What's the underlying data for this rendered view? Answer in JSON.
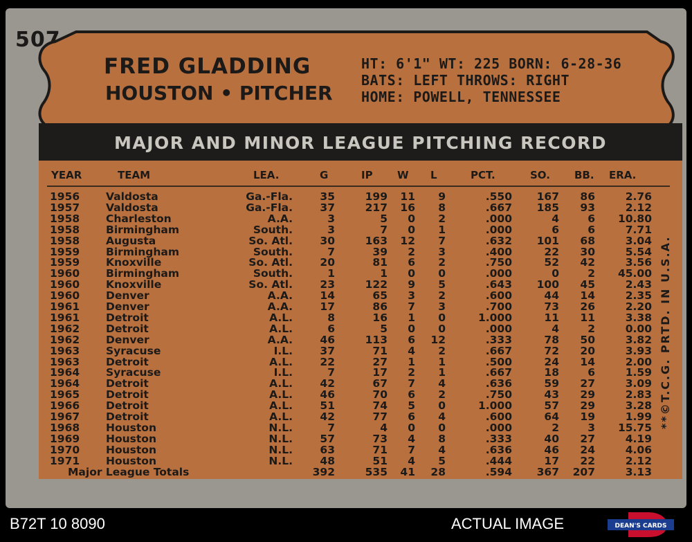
{
  "card_number": "507",
  "player": {
    "name": "FRED GLADDING",
    "team_position": "HOUSTON • PITCHER",
    "bio_line1": "HT: 6'1\"  WT: 225   BORN: 6-28-36",
    "bio_line2": "BATS: LEFT       THROWS: RIGHT",
    "bio_line3": "HOME: POWELL, TENNESSEE"
  },
  "banner_title": "MAJOR AND MINOR LEAGUE PITCHING RECORD",
  "columns": [
    "YEAR",
    "TEAM",
    "LEA.",
    "G",
    "IP",
    "W",
    "L",
    "PCT.",
    "SO.",
    "BB.",
    "ERA."
  ],
  "rows": [
    [
      "1956",
      "Valdosta",
      "Ga.-Fla.",
      "35",
      "199",
      "11",
      "9",
      ".550",
      "167",
      "86",
      "2.76"
    ],
    [
      "1957",
      "Valdosta",
      "Ga.-Fla.",
      "37",
      "217",
      "16",
      "8",
      ".667",
      "185",
      "93",
      "2.12"
    ],
    [
      "1958",
      "Charleston",
      "A.A.",
      "3",
      "5",
      "0",
      "2",
      ".000",
      "4",
      "6",
      "10.80"
    ],
    [
      "1958",
      "Birmingham",
      "South.",
      "3",
      "7",
      "0",
      "1",
      ".000",
      "6",
      "6",
      "7.71"
    ],
    [
      "1958",
      "Augusta",
      "So. Atl.",
      "30",
      "163",
      "12",
      "7",
      ".632",
      "101",
      "68",
      "3.04"
    ],
    [
      "1959",
      "Birmingham",
      "South.",
      "7",
      "39",
      "2",
      "3",
      ".400",
      "22",
      "30",
      "5.54"
    ],
    [
      "1959",
      "Knoxville",
      "So. Atl.",
      "20",
      "81",
      "6",
      "2",
      ".750",
      "52",
      "42",
      "3.56"
    ],
    [
      "1960",
      "Birmingham",
      "South.",
      "1",
      "1",
      "0",
      "0",
      ".000",
      "0",
      "2",
      "45.00"
    ],
    [
      "1960",
      "Knoxville",
      "So. Atl.",
      "23",
      "122",
      "9",
      "5",
      ".643",
      "100",
      "45",
      "2.43"
    ],
    [
      "1960",
      "Denver",
      "A.A.",
      "14",
      "65",
      "3",
      "2",
      ".600",
      "44",
      "14",
      "2.35"
    ],
    [
      "1961",
      "Denver",
      "A.A.",
      "17",
      "86",
      "7",
      "3",
      ".700",
      "73",
      "26",
      "2.20"
    ],
    [
      "1961",
      "Detroit",
      "A.L.",
      "8",
      "16",
      "1",
      "0",
      "1.000",
      "11",
      "11",
      "3.38"
    ],
    [
      "1962",
      "Detroit",
      "A.L.",
      "6",
      "5",
      "0",
      "0",
      ".000",
      "4",
      "2",
      "0.00"
    ],
    [
      "1962",
      "Denver",
      "A.A.",
      "46",
      "113",
      "6",
      "12",
      ".333",
      "78",
      "50",
      "3.82"
    ],
    [
      "1963",
      "Syracuse",
      "I.L.",
      "37",
      "71",
      "4",
      "2",
      ".667",
      "72",
      "20",
      "3.93"
    ],
    [
      "1963",
      "Detroit",
      "A.L.",
      "22",
      "27",
      "1",
      "1",
      ".500",
      "24",
      "14",
      "2.00"
    ],
    [
      "1964",
      "Syracuse",
      "I.L.",
      "7",
      "17",
      "2",
      "1",
      ".667",
      "18",
      "6",
      "1.59"
    ],
    [
      "1964",
      "Detroit",
      "A.L.",
      "42",
      "67",
      "7",
      "4",
      ".636",
      "59",
      "27",
      "3.09"
    ],
    [
      "1965",
      "Detroit",
      "A.L.",
      "46",
      "70",
      "6",
      "2",
      ".750",
      "43",
      "29",
      "2.83"
    ],
    [
      "1966",
      "Detroit",
      "A.L.",
      "51",
      "74",
      "5",
      "0",
      "1.000",
      "57",
      "29",
      "3.28"
    ],
    [
      "1967",
      "Detroit",
      "A.L.",
      "42",
      "77",
      "6",
      "4",
      ".600",
      "64",
      "19",
      "1.99"
    ],
    [
      "1968",
      "Houston",
      "N.L.",
      "7",
      "4",
      "0",
      "0",
      ".000",
      "2",
      "3",
      "15.75"
    ],
    [
      "1969",
      "Houston",
      "N.L.",
      "57",
      "73",
      "4",
      "8",
      ".333",
      "40",
      "27",
      "4.19"
    ],
    [
      "1970",
      "Houston",
      "N.L.",
      "63",
      "71",
      "7",
      "4",
      ".636",
      "46",
      "24",
      "4.06"
    ],
    [
      "1971",
      "Houston",
      "N.L.",
      "48",
      "51",
      "4",
      "5",
      ".444",
      "17",
      "22",
      "2.12"
    ]
  ],
  "totals": {
    "label": "Major League Totals",
    "values": [
      "392",
      "535",
      "41",
      "28",
      ".594",
      "367",
      "207",
      "3.13"
    ]
  },
  "vertical_text": "**©T.C.G. PRTD. IN U.S.A.",
  "footer": {
    "left": "B72T 10 8090",
    "right": "ACTUAL IMAGE",
    "logo_text": "DEAN'S CARDS"
  },
  "colors": {
    "card_gray": "#9a9690",
    "panel_orange": "#b9703f",
    "banner_dark": "#1e1c1a",
    "ink": "#1c1a18"
  }
}
